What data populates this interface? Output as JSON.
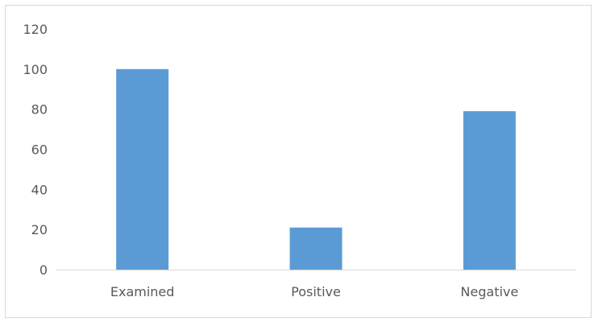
{
  "chart_data": {
    "type": "bar",
    "categories": [
      "Examined",
      "Positive",
      "Negative"
    ],
    "values": [
      100,
      21,
      79
    ],
    "ylim": [
      0,
      120
    ],
    "y_ticks": [
      0,
      20,
      40,
      60,
      80,
      100,
      120
    ],
    "grid": false,
    "legend": "none",
    "bar_color": "#5b9bd5",
    "axis_color": "#d9d9d9",
    "label_color": "#595959"
  }
}
